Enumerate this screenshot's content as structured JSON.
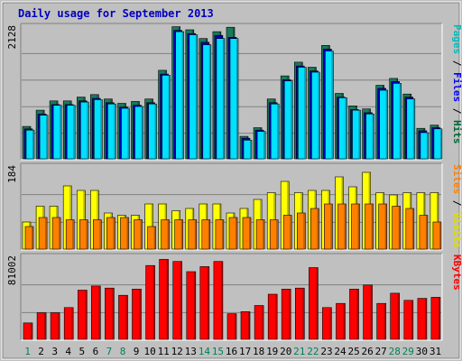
{
  "chart_data": {
    "type": "bar",
    "title": "Daily usage for September 2013",
    "days": [
      "1",
      "2",
      "3",
      "4",
      "5",
      "6",
      "7",
      "8",
      "9",
      "10",
      "11",
      "12",
      "13",
      "14",
      "15",
      "16",
      "17",
      "18",
      "19",
      "20",
      "21",
      "22",
      "23",
      "24",
      "25",
      "26",
      "27",
      "28",
      "29",
      "30",
      "31"
    ],
    "weekend_days": [
      "1",
      "7",
      "8",
      "14",
      "15",
      "21",
      "22",
      "28",
      "29"
    ],
    "panels": [
      {
        "id": "top",
        "ymax_label": "2128",
        "ymax": 2128,
        "right_labels": [
          {
            "text": "Pages",
            "color": "#00bbbb"
          },
          {
            "text": " / ",
            "color": "#000000"
          },
          {
            "text": "Files",
            "color": "#0000ff"
          },
          {
            "text": " / ",
            "color": "#000000"
          },
          {
            "text": "Hits",
            "color": "#006633"
          }
        ],
        "series": [
          {
            "name": "Hits",
            "color": "#1a7a5a",
            "values": [
              520,
              780,
              930,
              930,
              990,
              1030,
              960,
              890,
              920,
              960,
              1420,
              2120,
              2070,
              1930,
              2040,
              2110,
              360,
              500,
              960,
              1330,
              1550,
              1470,
              1820,
              1050,
              850,
              800,
              1180,
              1290,
              1040,
              490,
              540
            ]
          },
          {
            "name": "Files",
            "color": "#0000c0",
            "values": [
              480,
              720,
              870,
              870,
              930,
              970,
              900,
              830,
              860,
              900,
              1360,
              2060,
              2010,
              1870,
              1980,
              1950,
              330,
              460,
              900,
              1270,
              1490,
              1410,
              1760,
              990,
              790,
              740,
              1130,
              1240,
              990,
              450,
              500
            ]
          },
          {
            "name": "Pages",
            "color": "#00e0ff",
            "values": [
              460,
              700,
              860,
              860,
              910,
              950,
              880,
              810,
              840,
              880,
              1340,
              2040,
              1990,
              1830,
              1930,
              1930,
              300,
              440,
              880,
              1250,
              1470,
              1390,
              1730,
              980,
              780,
              720,
              1100,
              1210,
              960,
              420,
              480
            ]
          }
        ]
      },
      {
        "id": "middle",
        "ymax_label": "184",
        "ymax": 184,
        "right_labels": [
          {
            "text": "Sites",
            "color": "#ff8000"
          },
          {
            "text": " / ",
            "color": "#000000"
          },
          {
            "text": "Visits",
            "color": "#dddd00"
          }
        ],
        "series": [
          {
            "name": "Visits",
            "color": "#ffff00",
            "values": [
              60,
              95,
              95,
              140,
              130,
              130,
              80,
              75,
              75,
              100,
              100,
              85,
              90,
              100,
              100,
              80,
              90,
              110,
              125,
              150,
              125,
              130,
              130,
              160,
              138,
              170,
              125,
              120,
              125,
              125,
              125
            ]
          },
          {
            "name": "Sites",
            "color": "#ff8000",
            "values": [
              50,
              70,
              70,
              65,
              65,
              65,
              70,
              70,
              65,
              50,
              65,
              65,
              65,
              65,
              65,
              70,
              70,
              65,
              65,
              75,
              80,
              90,
              100,
              100,
              100,
              100,
              100,
              95,
              90,
              75,
              60
            ]
          }
        ]
      },
      {
        "id": "bottom",
        "ymax_label": "81002",
        "ymax": 81002,
        "right_labels": [
          {
            "text": "KBytes",
            "color": "#ff0000"
          }
        ],
        "series": [
          {
            "name": "KBytes",
            "color": "#ff0000",
            "values": [
              16000,
              26000,
              26000,
              31000,
              48000,
              52000,
              50000,
              43000,
              49000,
              72000,
              78000,
              76000,
              66000,
              71000,
              76000,
              25000,
              27000,
              33000,
              44000,
              49000,
              50000,
              70000,
              31000,
              35000,
              49000,
              53000,
              35000,
              45000,
              38000,
              40000,
              41000
            ]
          }
        ]
      }
    ]
  }
}
